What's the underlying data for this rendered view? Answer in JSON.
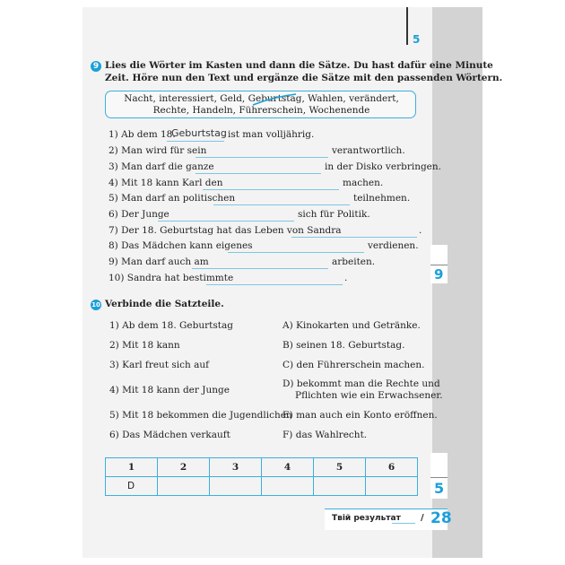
{
  "page_number": "5",
  "ex9": {
    "number": "9",
    "instruction_1": "Lies die Wörter im Kasten und dann die Sätze. Du hast dafür eine Minute",
    "instruction_2": "Zeit. Höre nun den Text und ergänze die Sätze mit den passenden Wörtern.",
    "box_line_1": "Nacht, interessiert, Geld, Geburtstag, Wahlen, verändert,",
    "box_line_2": "Rechte, Handeln, Führerschein, Wochenende",
    "sentences": [
      {
        "before": "1) Ab dem 18.",
        "answer": "Geburtstag",
        "after": "ist man volljährig."
      },
      {
        "before": "2) Man wird für sein",
        "answer": "",
        "after": "verantwortlich."
      },
      {
        "before": "3) Man darf die ganze",
        "answer": "",
        "after": "in der Disko verbringen."
      },
      {
        "before": "4) Mit 18 kann Karl den",
        "answer": "",
        "after": "machen."
      },
      {
        "before": "5) Man darf an politischen",
        "answer": "",
        "after": "teilnehmen."
      },
      {
        "before": "6) Der Junge",
        "answer": "",
        "after": "sich für Politik."
      },
      {
        "before": "7) Der 18. Geburtstag hat das Leben von Sandra",
        "answer": "",
        "after": "."
      },
      {
        "before": "8) Das Mädchen kann eigenes",
        "answer": "",
        "after": "verdienen."
      },
      {
        "before": "9) Man darf auch am",
        "answer": "",
        "after": "arbeiten."
      },
      {
        "before": "10) Sandra hat bestimmte",
        "answer": "",
        "after": "."
      }
    ],
    "score": "9"
  },
  "ex10": {
    "number": "10",
    "instruction": "Verbinde die Satzteile.",
    "left": [
      "1) Ab dem 18. Geburtstag",
      "2) Mit 18 kann",
      "3) Karl freut sich auf",
      "4) Mit 18 kann der Junge",
      "5) Mit 18 bekommen die Jugendlichen",
      "6) Das Mädchen verkauft"
    ],
    "right": [
      "A) Kinokarten und Getränke.",
      "B) seinen 18. Geburtstag.",
      "C) den Führerschein machen.",
      "D) bekommt man die Rechte und",
      "Pflichten wie ein Erwachsener.",
      "E) man auch ein Konto eröffnen.",
      "F) das Wahlrecht."
    ],
    "table_headers": [
      "1",
      "2",
      "3",
      "4",
      "5",
      "6"
    ],
    "table_answers": [
      "D",
      "",
      "",
      "",
      "",
      ""
    ],
    "score": "5"
  },
  "result": {
    "label": "Твій результат",
    "total": "/ 28",
    "max": "28"
  },
  "colors": {
    "accent": "#1ba0d8",
    "page": "#f4f3f3",
    "strip": "#d3d3d4"
  }
}
